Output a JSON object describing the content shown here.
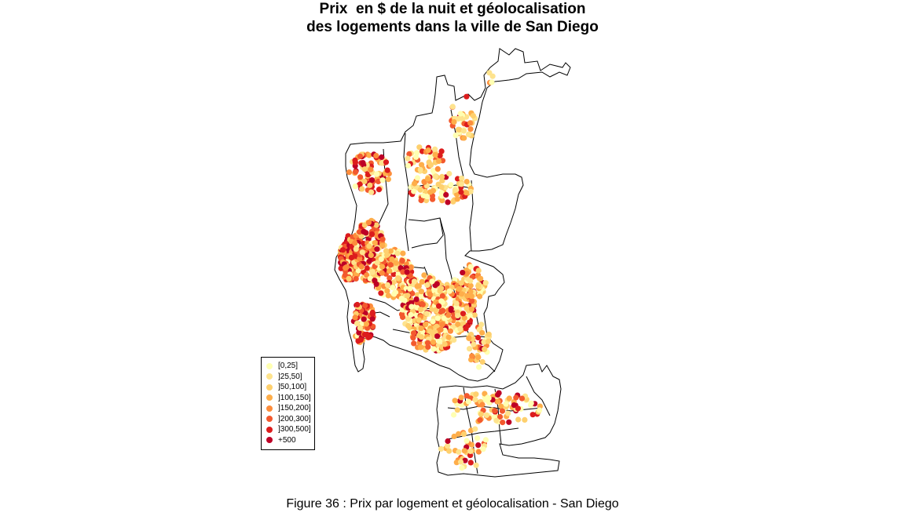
{
  "title": {
    "line1": "Prix  en $ de la nuit et géolocalisation",
    "line2": "des logements dans la ville de San Diego"
  },
  "legend": {
    "items": [
      {
        "label": "[0,25]",
        "color": "#ffffb2"
      },
      {
        "label": "]25,50]",
        "color": "#fee38d"
      },
      {
        "label": "]50,100]",
        "color": "#fed06e"
      },
      {
        "label": "]100,150]",
        "color": "#feae4a"
      },
      {
        "label": "]150,200]",
        "color": "#fd8d3c"
      },
      {
        "label": "]200,300]",
        "color": "#f3592e"
      },
      {
        "label": "]300,500]",
        "color": "#dc1c1d"
      },
      {
        "label": "+500",
        "color": "#bd0026"
      }
    ]
  },
  "caption": "Figure 36 : Prix par logement et géolocalisation - San Diego"
}
